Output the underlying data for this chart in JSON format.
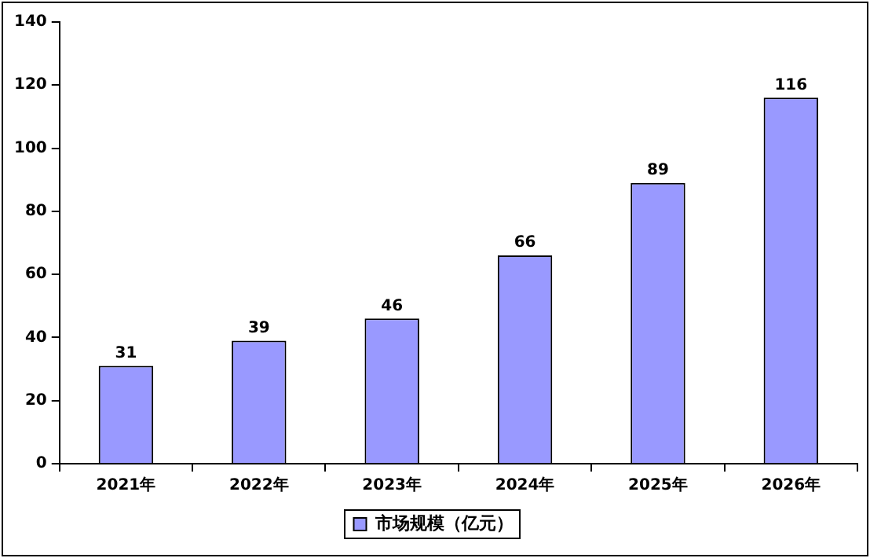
{
  "chart_data": {
    "type": "bar",
    "categories": [
      "2021年",
      "2022年",
      "2023年",
      "2024年",
      "2025年",
      "2026年"
    ],
    "series": [
      {
        "name": "市场规模（亿元）",
        "color": "#9999ff",
        "values": [
          31,
          39,
          46,
          66,
          89,
          116
        ]
      }
    ],
    "ylim": [
      0,
      140
    ],
    "yticks": [
      0,
      20,
      40,
      60,
      80,
      100,
      120,
      140
    ],
    "grid": false,
    "legend": "bottom",
    "data_labels": true
  }
}
